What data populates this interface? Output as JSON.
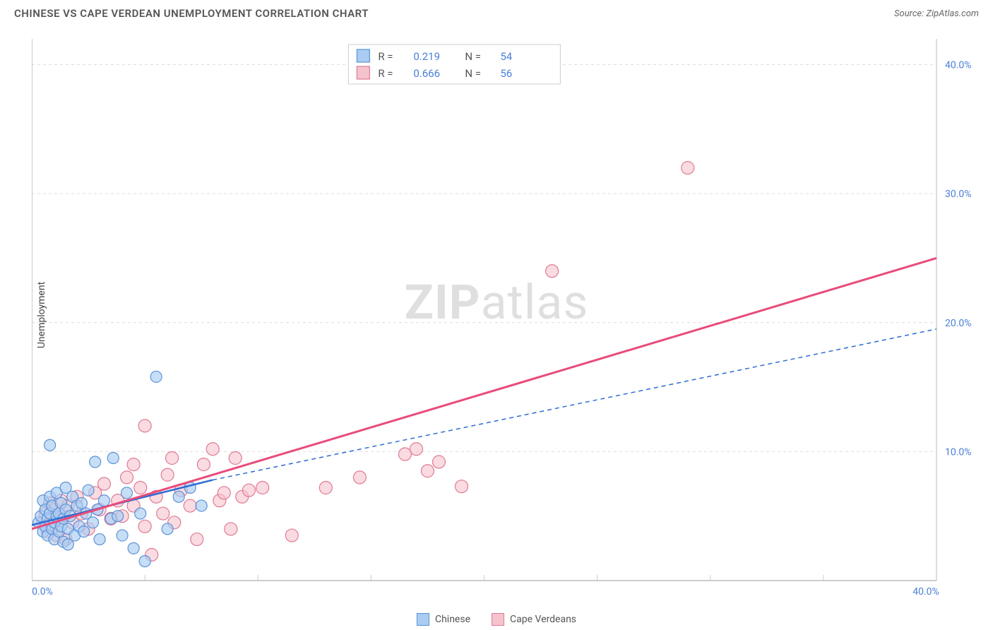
{
  "title": "CHINESE VS CAPE VERDEAN UNEMPLOYMENT CORRELATION CHART",
  "source_label": "Source: ZipAtlas.com",
  "yaxis_label": "Unemployment",
  "watermark": {
    "bold": "ZIP",
    "rest": "atlas"
  },
  "chart": {
    "type": "scatter",
    "background_color": "#ffffff",
    "grid_color": "#dddddd",
    "grid_dash": "4,4",
    "axis_color": "#bbbbbb",
    "tick_color": "#cccccc",
    "x_min": 0,
    "x_max": 40,
    "y_min": 0,
    "y_max": 42,
    "x_ticks": [
      0,
      40
    ],
    "x_tick_labels": [
      "0.0%",
      "40.0%"
    ],
    "y_ticks": [
      10,
      20,
      30,
      40
    ],
    "y_tick_labels": [
      "10.0%",
      "20.0%",
      "30.0%",
      "40.0%"
    ],
    "x_gridlines": [
      5,
      10,
      15,
      20,
      25,
      30,
      35,
      40
    ],
    "y_gridlines": [
      10,
      20,
      30,
      40
    ],
    "label_color": "#4a7fd8",
    "label_fontsize": 14
  },
  "series": [
    {
      "name": "Chinese",
      "swatch_fill": "#a9cdf2",
      "swatch_stroke": "#5b92d6",
      "point_fill": "#a9cdf2",
      "point_stroke": "#5b92d6",
      "point_opacity": 0.65,
      "point_radius": 8,
      "R": "0.219",
      "N": "54",
      "trend": {
        "solid_from": [
          0,
          4.3
        ],
        "solid_to": [
          8,
          7.8
        ],
        "dash_from": [
          8,
          7.8
        ],
        "dash_to": [
          40,
          19.5
        ],
        "color": "#2d6cd2",
        "width": 2.5,
        "dash": "6,5"
      },
      "points": [
        [
          0.3,
          4.5
        ],
        [
          0.4,
          5.0
        ],
        [
          0.5,
          3.8
        ],
        [
          0.5,
          6.2
        ],
        [
          0.6,
          4.2
        ],
        [
          0.6,
          5.5
        ],
        [
          0.7,
          3.5
        ],
        [
          0.7,
          4.8
        ],
        [
          0.8,
          5.2
        ],
        [
          0.8,
          6.5
        ],
        [
          0.9,
          4.0
        ],
        [
          0.9,
          5.8
        ],
        [
          1.0,
          3.2
        ],
        [
          1.0,
          4.5
        ],
        [
          1.1,
          5.0
        ],
        [
          1.1,
          6.8
        ],
        [
          1.2,
          3.8
        ],
        [
          1.2,
          5.2
        ],
        [
          1.3,
          4.2
        ],
        [
          1.3,
          6.0
        ],
        [
          1.4,
          3.0
        ],
        [
          1.4,
          4.8
        ],
        [
          1.5,
          5.5
        ],
        [
          1.5,
          7.2
        ],
        [
          1.6,
          2.8
        ],
        [
          1.6,
          4.0
        ],
        [
          1.7,
          5.0
        ],
        [
          1.8,
          6.5
        ],
        [
          1.9,
          3.5
        ],
        [
          2.0,
          5.8
        ],
        [
          2.1,
          4.2
        ],
        [
          2.2,
          6.0
        ],
        [
          2.3,
          3.8
        ],
        [
          2.4,
          5.2
        ],
        [
          2.5,
          7.0
        ],
        [
          2.7,
          4.5
        ],
        [
          2.9,
          5.5
        ],
        [
          3.0,
          3.2
        ],
        [
          3.2,
          6.2
        ],
        [
          3.5,
          4.8
        ],
        [
          3.8,
          5.0
        ],
        [
          4.0,
          3.5
        ],
        [
          4.2,
          6.8
        ],
        [
          4.5,
          2.5
        ],
        [
          4.8,
          5.2
        ],
        [
          5.0,
          1.5
        ],
        [
          5.5,
          15.8
        ],
        [
          6.0,
          4.0
        ],
        [
          6.5,
          6.5
        ],
        [
          7.0,
          7.2
        ],
        [
          7.5,
          5.8
        ],
        [
          3.6,
          9.5
        ],
        [
          2.8,
          9.2
        ],
        [
          0.8,
          10.5
        ]
      ]
    },
    {
      "name": "Cape Verdeans",
      "swatch_fill": "#f5c3cd",
      "swatch_stroke": "#e07a94",
      "point_fill": "#f5c3cd",
      "point_stroke": "#e07a94",
      "point_opacity": 0.6,
      "point_radius": 9,
      "R": "0.666",
      "N": "56",
      "trend": {
        "solid_from": [
          0,
          4.0
        ],
        "solid_to": [
          40,
          25.0
        ],
        "color": "#e94b7a",
        "width": 3
      },
      "points": [
        [
          0.5,
          4.5
        ],
        [
          0.6,
          5.2
        ],
        [
          0.7,
          3.8
        ],
        [
          0.8,
          6.0
        ],
        [
          0.9,
          4.2
        ],
        [
          1.0,
          5.5
        ],
        [
          1.1,
          3.5
        ],
        [
          1.2,
          4.8
        ],
        [
          1.3,
          6.2
        ],
        [
          1.4,
          5.0
        ],
        [
          1.5,
          3.2
        ],
        [
          1.6,
          5.8
        ],
        [
          1.8,
          4.5
        ],
        [
          2.0,
          6.5
        ],
        [
          2.2,
          5.2
        ],
        [
          2.5,
          4.0
        ],
        [
          2.8,
          6.8
        ],
        [
          3.0,
          5.5
        ],
        [
          3.2,
          7.5
        ],
        [
          3.5,
          4.8
        ],
        [
          3.8,
          6.2
        ],
        [
          4.0,
          5.0
        ],
        [
          4.2,
          8.0
        ],
        [
          4.5,
          5.8
        ],
        [
          4.8,
          7.2
        ],
        [
          5.0,
          4.2
        ],
        [
          5.3,
          2.0
        ],
        [
          5.5,
          6.5
        ],
        [
          5.8,
          5.2
        ],
        [
          6.0,
          8.2
        ],
        [
          6.3,
          4.5
        ],
        [
          6.6,
          7.0
        ],
        [
          7.0,
          5.8
        ],
        [
          7.3,
          3.2
        ],
        [
          7.6,
          9.0
        ],
        [
          8.0,
          10.2
        ],
        [
          8.3,
          6.2
        ],
        [
          8.5,
          6.8
        ],
        [
          8.8,
          4.0
        ],
        [
          9.0,
          9.5
        ],
        [
          9.3,
          6.5
        ],
        [
          9.6,
          7.0
        ],
        [
          10.2,
          7.2
        ],
        [
          11.5,
          3.5
        ],
        [
          13.0,
          7.2
        ],
        [
          14.5,
          8.0
        ],
        [
          16.5,
          9.8
        ],
        [
          17.0,
          10.2
        ],
        [
          17.5,
          8.5
        ],
        [
          18.0,
          9.2
        ],
        [
          19.0,
          7.3
        ],
        [
          5.0,
          12.0
        ],
        [
          6.2,
          9.5
        ],
        [
          4.5,
          9.0
        ],
        [
          23.0,
          24.0
        ],
        [
          29.0,
          32.0
        ]
      ]
    }
  ],
  "stats_box": {
    "rows": [
      {
        "swatch_series": 0,
        "R_label": "R  =",
        "R": "0.219",
        "N_label": "N  =",
        "N": "54"
      },
      {
        "swatch_series": 1,
        "R_label": "R  =",
        "R": "0.666",
        "N_label": "N  =",
        "N": "56"
      }
    ]
  },
  "bottom_legend": [
    {
      "series": 0,
      "label": "Chinese"
    },
    {
      "series": 1,
      "label": "Cape Verdeans"
    }
  ]
}
